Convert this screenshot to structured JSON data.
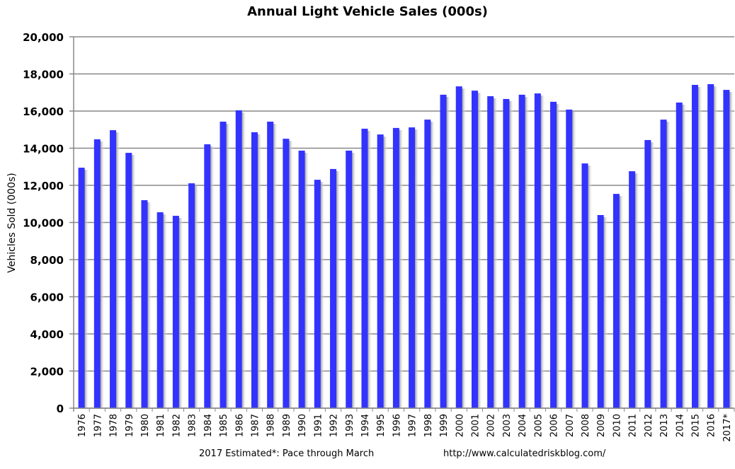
{
  "chart_data": {
    "type": "bar",
    "title": "Annual Light Vehicle Sales  (000s)",
    "xlabel": "",
    "ylabel": "Vehicles Sold (000s)",
    "ylim": [
      0,
      20000
    ],
    "yticks": [
      "0",
      "2,000",
      "4,000",
      "6,000",
      "8,000",
      "10,000",
      "12,000",
      "14,000",
      "16,000",
      "18,000",
      "20,000"
    ],
    "ytick_values": [
      0,
      2000,
      4000,
      6000,
      8000,
      10000,
      12000,
      14000,
      16000,
      18000,
      20000
    ],
    "grid": true,
    "legend": "none",
    "bar_color": "#3333ff",
    "categories": [
      "1976",
      "1977",
      "1978",
      "1979",
      "1980",
      "1981",
      "1982",
      "1983",
      "1984",
      "1985",
      "1986",
      "1987",
      "1988",
      "1989",
      "1990",
      "1991",
      "1992",
      "1993",
      "1994",
      "1995",
      "1996",
      "1997",
      "1998",
      "1999",
      "2000",
      "2001",
      "2002",
      "2003",
      "2004",
      "2005",
      "2006",
      "2007",
      "2008",
      "2009",
      "2010",
      "2011",
      "2012",
      "2013",
      "2014",
      "2015",
      "2016",
      "2017*"
    ],
    "values": [
      12950,
      14480,
      14970,
      13750,
      11200,
      10550,
      10360,
      12110,
      14210,
      15430,
      16040,
      14860,
      15430,
      14510,
      13870,
      12300,
      12880,
      13870,
      15050,
      14740,
      15090,
      15120,
      15540,
      16880,
      17330,
      17100,
      16800,
      16650,
      16880,
      16950,
      16500,
      16080,
      13180,
      10400,
      11540,
      12760,
      14440,
      15540,
      16460,
      17410,
      17450,
      17140
    ]
  },
  "footnote": "2017 Estimated*: Pace through March",
  "source_url": "http://www.calculatedriskblog.com/"
}
